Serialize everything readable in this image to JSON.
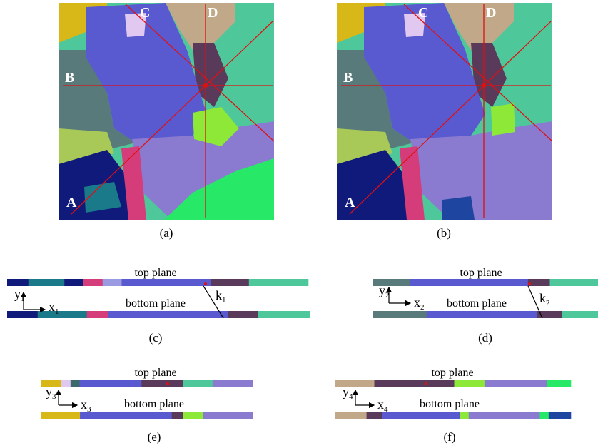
{
  "panels": {
    "a": {
      "caption": "(a)"
    },
    "b": {
      "caption": "(b)"
    },
    "c": {
      "caption": "(c)",
      "top": "top plane",
      "bottom": "bottom plane",
      "y": "y",
      "y_sub": "1",
      "x": "x",
      "x_sub": "1",
      "k": "k",
      "k_sub": "1"
    },
    "d": {
      "caption": "(d)",
      "top": "top plane",
      "bottom": "bottom plane",
      "y": "y",
      "y_sub": "2",
      "x": "x",
      "x_sub": "2",
      "k": "k",
      "k_sub": "2"
    },
    "e": {
      "caption": "(e)",
      "top": "top plane",
      "bottom": "bottom plane",
      "y": "y",
      "y_sub": "3",
      "x": "x",
      "x_sub": "3"
    },
    "f": {
      "caption": "(f)",
      "top": "top plane",
      "bottom": "bottom plane",
      "y": "y",
      "y_sub": "4",
      "x": "x",
      "x_sub": "4"
    }
  },
  "corner_labels": {
    "A": "A",
    "B": "B",
    "C": "C",
    "D": "D"
  },
  "colors": {
    "navy": "#101a7a",
    "teal": "#1a7a8a",
    "magenta": "#d43c7a",
    "blue": "#5a5ad0",
    "lavender": "#8a7ad0",
    "lightlav": "#9a9ae0",
    "plum": "#5a3a5a",
    "mint": "#4ec89a",
    "gold": "#d8b818",
    "pink": "#e0c8f0",
    "darkteal": "#3a6a6a",
    "tan": "#c0a888",
    "lime": "#8ee838",
    "green": "#28e868",
    "darkblue": "#1e46a0",
    "sage": "#587a7a",
    "olive": "#a8c858",
    "red": "#e01010"
  },
  "strips": {
    "c": {
      "top": [
        [
          "navy",
          0.1
        ],
        [
          "teal",
          0.17
        ],
        [
          "navy",
          0.09
        ],
        [
          "magenta",
          0.09
        ],
        [
          "lightlav",
          0.09
        ],
        [
          "blue",
          0.42
        ],
        [
          "plum",
          0.18
        ],
        [
          "mint",
          0.28
        ]
      ],
      "bottom": [
        [
          "navy",
          0.13
        ],
        [
          "teal",
          0.21
        ],
        [
          "magenta",
          0.09
        ],
        [
          "blue",
          0.51
        ],
        [
          "plum",
          0.13
        ],
        [
          "mint",
          0.22
        ]
      ]
    },
    "d": {
      "top": [
        [
          "sage",
          0.17
        ],
        [
          "blue",
          0.54
        ],
        [
          "plum",
          0.1
        ],
        [
          "mint",
          0.22
        ]
      ],
      "bottom": [
        [
          "sage",
          0.24
        ],
        [
          "blue",
          0.49
        ],
        [
          "plum",
          0.11
        ],
        [
          "mint",
          0.16
        ]
      ]
    },
    "e": {
      "top": [
        [
          "gold",
          0.11
        ],
        [
          "pink",
          0.05
        ],
        [
          "darkteal",
          0.05
        ],
        [
          "blue",
          0.34
        ],
        [
          "plum",
          0.23
        ],
        [
          "mint",
          0.16
        ],
        [
          "lavender",
          0.22
        ]
      ],
      "bottom": [
        [
          "gold",
          0.21
        ],
        [
          "blue",
          0.5
        ],
        [
          "plum",
          0.06
        ],
        [
          "lime",
          0.11
        ],
        [
          "lavender",
          0.27
        ]
      ]
    },
    "f": {
      "top": [
        [
          "tan",
          0.18
        ],
        [
          "plum",
          0.37
        ],
        [
          "lime",
          0.14
        ],
        [
          "lavender",
          0.29
        ],
        [
          "green",
          0.11
        ]
      ],
      "bottom": [
        [
          "tan",
          0.14
        ],
        [
          "plum",
          0.07
        ],
        [
          "blue",
          0.35
        ],
        [
          "lime",
          0.04
        ],
        [
          "lavender",
          0.32
        ],
        [
          "green",
          0.04
        ],
        [
          "darkblue",
          0.1
        ]
      ]
    }
  }
}
